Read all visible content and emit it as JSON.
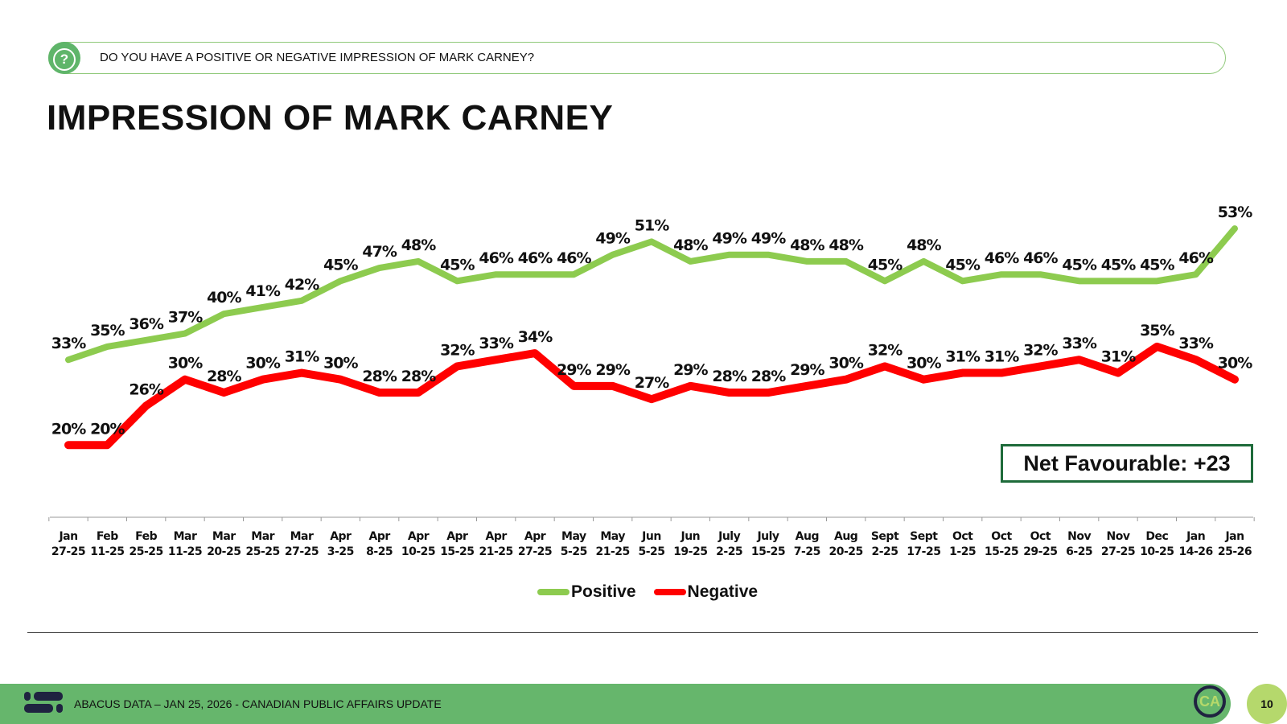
{
  "header": {
    "question": "DO YOU HAVE A POSITIVE OR NEGATIVE IMPRESSION OF MARK CARNEY?",
    "question_icon": "question-icon",
    "title": "IMPRESSION OF MARK CARNEY"
  },
  "net_favourable": "Net Favourable: +23",
  "footer": {
    "text": "ABACUS DATA – JAN 25, 2026 - CANADIAN PUBLIC AFFAIRS UPDATE",
    "badge": "CA",
    "page_number": "10"
  },
  "chart_data": {
    "type": "line",
    "title": "IMPRESSION OF MARK CARNEY",
    "xlabel": "",
    "ylabel": "",
    "ylim": [
      9,
      60
    ],
    "grid": false,
    "legend_placement": "bottom-center",
    "categories": [
      [
        "Jan",
        "27-25"
      ],
      [
        "Feb",
        "11-25"
      ],
      [
        "Feb",
        "25-25"
      ],
      [
        "Mar",
        "11-25"
      ],
      [
        "Mar",
        "20-25"
      ],
      [
        "Mar",
        "25-25"
      ],
      [
        "Mar",
        "27-25"
      ],
      [
        "Apr",
        "3-25"
      ],
      [
        "Apr",
        "8-25"
      ],
      [
        "Apr",
        "10-25"
      ],
      [
        "Apr",
        "15-25"
      ],
      [
        "Apr",
        "21-25"
      ],
      [
        "Apr",
        "27-25"
      ],
      [
        "May",
        "5-25"
      ],
      [
        "May",
        "21-25"
      ],
      [
        "Jun",
        "5-25"
      ],
      [
        "Jun",
        "19-25"
      ],
      [
        "July",
        "2-25"
      ],
      [
        "July",
        "15-25"
      ],
      [
        "Aug",
        "7-25"
      ],
      [
        "Aug",
        "20-25"
      ],
      [
        "Sept",
        "2-25"
      ],
      [
        "Sept",
        "17-25"
      ],
      [
        "Oct",
        "1-25"
      ],
      [
        "Oct",
        "15-25"
      ],
      [
        "Oct",
        "29-25"
      ],
      [
        "Nov",
        "6-25"
      ],
      [
        "Nov",
        "27-25"
      ],
      [
        "Dec",
        "10-25"
      ],
      [
        "Jan",
        "14-26"
      ],
      [
        "Jan",
        "25-26"
      ]
    ],
    "series": [
      {
        "name": "Positive",
        "color": "#8dcb4f",
        "values": [
          33,
          35,
          36,
          37,
          40,
          41,
          42,
          45,
          47,
          48,
          45,
          46,
          46,
          46,
          49,
          51,
          48,
          49,
          49,
          48,
          48,
          45,
          48,
          45,
          46,
          46,
          45,
          45,
          45,
          46,
          53
        ]
      },
      {
        "name": "Negative",
        "color": "#ff0000",
        "values": [
          20,
          20,
          26,
          30,
          28,
          30,
          31,
          30,
          28,
          28,
          32,
          33,
          34,
          29,
          29,
          27,
          29,
          28,
          28,
          29,
          30,
          32,
          30,
          31,
          31,
          32,
          33,
          31,
          35,
          33,
          30
        ]
      }
    ]
  }
}
